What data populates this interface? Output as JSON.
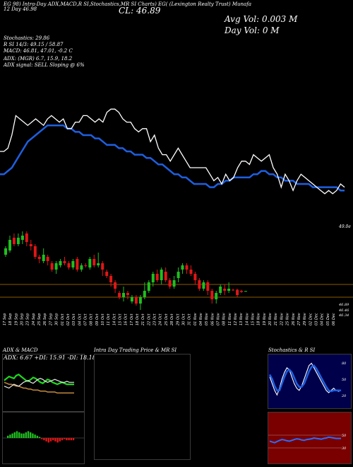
{
  "header": {
    "row1": "EG 98) Intra-Day ADX,MACD,R  SI,Stochastics,MR  SI Charts) EG(  (Lexington Realty Trust) Munafa",
    "row2": "12  Day  46.98",
    "close_label": "CL: 46.89",
    "avg_vol": "Avg Vol: 0.003 M",
    "day_vol": "Day Vol: 0   M"
  },
  "indicators": {
    "stochastics": "Stochastics: 29.86",
    "rsi": "R   SI 14/3: 49.15 / 58.87",
    "macd": "MACD: 46.81, 47.01, -0.2  C",
    "adx": "ADX:                              (MGR) 6.7,  15.9,  18.2",
    "adx_signal": "ADX  signal: SELL  Sloping @ 6%"
  },
  "price_axis": {
    "top_label": "49.0e",
    "low_labels": [
      "46.89",
      "46.46",
      "46.34"
    ]
  },
  "date_labels": [
    "17 Sep",
    "18 Sep",
    "19 Sep",
    "20 Sep",
    "23 Sep",
    "24 Sep",
    "25 Sep",
    "26 Sep",
    "27 Sep",
    "30 Sep",
    "01 Oct",
    "02 Oct",
    "03 Oct",
    "04 Oct",
    "07 Oct",
    "08 Oct",
    "09 Oct",
    "10 Oct",
    "11 Oct",
    "14 Oct",
    "15 Oct",
    "16 Oct",
    "17 Oct",
    "18 Oct",
    "21 Oct",
    "22 Oct",
    "23 Oct",
    "24 Oct",
    "25 Oct",
    "28 Oct",
    "29 Oct",
    "30 Oct",
    "31 Oct",
    "01 Nov",
    "04 Nov",
    "05 Nov",
    "06 Nov",
    "07 Nov",
    "08 Nov",
    "11 Nov",
    "12 Nov",
    "13 Nov",
    "14 Nov",
    "15 Nov",
    "18 Nov",
    "19 Nov",
    "20 Nov",
    "21 Nov",
    "22 Nov",
    "25 Nov",
    "26 Nov",
    "27 Nov",
    "29 Nov",
    "02 Dec",
    "03 Dec",
    "04 Dec",
    "05 Dec",
    "06 Dec"
  ],
  "panels": {
    "adx_macd": "ADX  & MACD",
    "adx_values": "ADX: 6.67  +DI: 15.91  -DI: 18.18",
    "intraday": "Intra  Day Trading Price  & MR                SI",
    "stoch_rsi": "Stochastics & R             SI",
    "stoch_ticks": [
      "80",
      "50",
      "20"
    ],
    "rsi_ticks": [
      "50",
      "30"
    ]
  },
  "colors": {
    "up": "#1fbf1f",
    "down": "#e01616",
    "ema": "#1e5fe0",
    "price_line": "#ffffff",
    "level_line": "#8b5a00",
    "panel_bg_dark": "#00004a",
    "panel_bg_red": "#7a0000",
    "panel_border": "#3a3a3a"
  },
  "chart_data": [
    {
      "type": "line",
      "name": "price",
      "y_relative": [
        15,
        15,
        14,
        10,
        4,
        5,
        6,
        7,
        6,
        5,
        6,
        7,
        5,
        4,
        5,
        6,
        5,
        8,
        8,
        6,
        6,
        4,
        4,
        5,
        6,
        5,
        6,
        3,
        2,
        2,
        3,
        5,
        6,
        6,
        8,
        9,
        8,
        8,
        12,
        10,
        14,
        16,
        16,
        18,
        16,
        14,
        16,
        18,
        20,
        20,
        20,
        20,
        20,
        22,
        24,
        23,
        25,
        22,
        24,
        23,
        20,
        18,
        18,
        19,
        16,
        17,
        18,
        17,
        16,
        20,
        22,
        26,
        22,
        24,
        27,
        24,
        22,
        23,
        24,
        25,
        26,
        27,
        28,
        27,
        28,
        27,
        25,
        26
      ],
      "ema_relative": [
        22,
        22,
        21,
        20,
        18,
        16,
        14,
        12,
        11,
        10,
        9,
        8,
        7,
        7,
        7,
        7,
        7,
        8,
        8,
        9,
        9,
        10,
        10,
        10,
        11,
        11,
        12,
        13,
        13,
        13,
        14,
        14,
        15,
        15,
        16,
        16,
        16,
        17,
        17,
        18,
        19,
        19,
        20,
        21,
        22,
        22,
        23,
        23,
        24,
        25,
        25,
        25,
        25,
        26,
        26,
        25,
        25,
        24,
        24,
        23,
        23,
        23,
        23,
        23,
        22,
        22,
        21,
        21,
        22,
        22,
        23,
        23,
        24,
        24,
        24,
        25,
        25,
        25,
        25,
        26,
        26,
        26,
        26,
        26,
        26,
        26,
        27,
        27
      ]
    },
    {
      "type": "candlestick",
      "candles": [
        {
          "o": 48.6,
          "c": 48.9,
          "h": 49.0,
          "l": 48.5,
          "up": true
        },
        {
          "o": 48.8,
          "c": 49.3,
          "h": 49.5,
          "l": 48.7,
          "up": true
        },
        {
          "o": 49.4,
          "c": 49.1,
          "h": 49.6,
          "l": 49.0,
          "up": false
        },
        {
          "o": 49.1,
          "c": 49.4,
          "h": 49.6,
          "l": 49.0,
          "up": true
        },
        {
          "o": 49.3,
          "c": 49.5,
          "h": 49.7,
          "l": 49.1,
          "up": true
        },
        {
          "o": 49.6,
          "c": 49.2,
          "h": 49.7,
          "l": 49.0,
          "up": false
        },
        {
          "o": 49.1,
          "c": 49.0,
          "h": 49.3,
          "l": 48.8,
          "up": false
        },
        {
          "o": 49.0,
          "c": 48.5,
          "h": 49.1,
          "l": 48.4,
          "up": false
        },
        {
          "o": 48.5,
          "c": 48.4,
          "h": 48.6,
          "l": 48.2,
          "up": false
        },
        {
          "o": 48.3,
          "c": 48.6,
          "h": 48.9,
          "l": 48.2,
          "up": true
        },
        {
          "o": 48.5,
          "c": 48.3,
          "h": 48.6,
          "l": 48.1,
          "up": false
        },
        {
          "o": 48.2,
          "c": 47.9,
          "h": 48.3,
          "l": 47.8,
          "up": false
        },
        {
          "o": 47.9,
          "c": 48.2,
          "h": 48.3,
          "l": 47.7,
          "up": true
        },
        {
          "o": 48.1,
          "c": 48.3,
          "h": 48.4,
          "l": 48.0,
          "up": true
        },
        {
          "o": 48.3,
          "c": 48.2,
          "h": 48.5,
          "l": 48.1,
          "up": false
        },
        {
          "o": 48.2,
          "c": 48.0,
          "h": 48.3,
          "l": 47.9,
          "up": false
        },
        {
          "o": 48.0,
          "c": 48.3,
          "h": 48.4,
          "l": 47.9,
          "up": true
        },
        {
          "o": 48.4,
          "c": 47.9,
          "h": 48.5,
          "l": 47.8,
          "up": false
        },
        {
          "o": 47.9,
          "c": 48.1,
          "h": 48.2,
          "l": 47.8,
          "up": true
        },
        {
          "o": 48.1,
          "c": 48.1,
          "h": 48.2,
          "l": 48.0,
          "up": false
        },
        {
          "o": 48.0,
          "c": 48.4,
          "h": 48.5,
          "l": 47.9,
          "up": true
        },
        {
          "o": 48.4,
          "c": 48.1,
          "h": 48.6,
          "l": 48.0,
          "up": false
        },
        {
          "o": 48.1,
          "c": 48.2,
          "h": 48.7,
          "l": 48.0,
          "up": true
        },
        {
          "o": 48.2,
          "c": 47.9,
          "h": 48.3,
          "l": 47.6,
          "up": false
        },
        {
          "o": 47.8,
          "c": 47.6,
          "h": 47.9,
          "l": 47.5,
          "up": false
        },
        {
          "o": 47.6,
          "c": 47.3,
          "h": 47.7,
          "l": 47.1,
          "up": false
        },
        {
          "o": 47.3,
          "c": 47.0,
          "h": 47.4,
          "l": 46.8,
          "up": false
        },
        {
          "o": 46.8,
          "c": 46.6,
          "h": 46.9,
          "l": 46.5,
          "up": false
        },
        {
          "o": 46.6,
          "c": 46.8,
          "h": 47.1,
          "l": 46.4,
          "up": true
        },
        {
          "o": 46.8,
          "c": 46.7,
          "h": 46.9,
          "l": 46.5,
          "up": false
        },
        {
          "o": 46.4,
          "c": 46.6,
          "h": 46.7,
          "l": 46.3,
          "up": true
        },
        {
          "o": 46.6,
          "c": 46.3,
          "h": 46.7,
          "l": 46.2,
          "up": false
        },
        {
          "o": 46.3,
          "c": 46.6,
          "h": 46.7,
          "l": 46.0,
          "up": true
        },
        {
          "o": 46.6,
          "c": 46.9,
          "h": 47.3,
          "l": 46.5,
          "up": true
        },
        {
          "o": 46.9,
          "c": 47.3,
          "h": 47.4,
          "l": 46.8,
          "up": true
        },
        {
          "o": 47.3,
          "c": 47.7,
          "h": 47.8,
          "l": 47.1,
          "up": true
        },
        {
          "o": 47.7,
          "c": 47.4,
          "h": 47.9,
          "l": 47.3,
          "up": false
        },
        {
          "o": 47.4,
          "c": 47.9,
          "h": 48.0,
          "l": 47.2,
          "up": true
        },
        {
          "o": 47.8,
          "c": 47.4,
          "h": 48.0,
          "l": 47.3,
          "up": false
        },
        {
          "o": 47.4,
          "c": 47.1,
          "h": 47.5,
          "l": 47.0,
          "up": false
        },
        {
          "o": 47.1,
          "c": 47.4,
          "h": 47.6,
          "l": 47.0,
          "up": true
        },
        {
          "o": 47.5,
          "c": 47.8,
          "h": 48.0,
          "l": 47.3,
          "up": true
        },
        {
          "o": 47.9,
          "c": 48.1,
          "h": 48.2,
          "l": 47.7,
          "up": true
        },
        {
          "o": 48.1,
          "c": 47.9,
          "h": 48.2,
          "l": 47.7,
          "up": false
        },
        {
          "o": 47.9,
          "c": 47.7,
          "h": 48.1,
          "l": 47.6,
          "up": false
        },
        {
          "o": 47.7,
          "c": 47.4,
          "h": 47.8,
          "l": 47.2,
          "up": false
        },
        {
          "o": 47.4,
          "c": 47.0,
          "h": 47.5,
          "l": 46.9,
          "up": false
        },
        {
          "o": 47.0,
          "c": 47.3,
          "h": 47.4,
          "l": 46.9,
          "up": true
        },
        {
          "o": 47.3,
          "c": 46.9,
          "h": 47.4,
          "l": 46.7,
          "up": false
        },
        {
          "o": 46.9,
          "c": 46.5,
          "h": 47.0,
          "l": 46.3,
          "up": false
        },
        {
          "o": 46.5,
          "c": 46.8,
          "h": 46.9,
          "l": 46.3,
          "up": true
        },
        {
          "o": 46.8,
          "c": 47.1,
          "h": 47.2,
          "l": 46.7,
          "up": true
        },
        {
          "o": 47.0,
          "c": 46.9,
          "h": 47.2,
          "l": 46.7,
          "up": false
        },
        {
          "o": 46.9,
          "c": 47.0,
          "h": 47.3,
          "l": 46.8,
          "up": true
        },
        {
          "o": 46.95,
          "c": 46.95,
          "h": 47.0,
          "l": 46.9,
          "up": false
        },
        {
          "o": 46.95,
          "c": 46.7,
          "h": 47.0,
          "l": 46.6,
          "up": false
        },
        {
          "o": 46.9,
          "c": 46.85,
          "h": 46.95,
          "l": 46.8,
          "up": false
        },
        {
          "o": 46.89,
          "c": 46.89,
          "h": 46.9,
          "l": 46.88,
          "up": true
        }
      ],
      "ylim": [
        46.0,
        49.8
      ],
      "level_lines": [
        47.2,
        46.6
      ]
    },
    {
      "type": "line",
      "name": "adx",
      "series": [
        {
          "name": "ADX",
          "values": [
            18,
            17,
            16,
            16,
            15,
            14,
            14,
            13,
            12,
            12,
            11,
            11,
            10,
            10,
            10,
            9,
            9,
            9,
            8,
            8,
            8,
            8,
            7,
            7,
            7,
            7,
            7,
            7,
            7,
            7
          ]
        },
        {
          "name": "+DI",
          "values": [
            20,
            22,
            24,
            23,
            22,
            25,
            26,
            24,
            22,
            20,
            19,
            21,
            23,
            22,
            20,
            18,
            17,
            19,
            21,
            20,
            18,
            17,
            16,
            17,
            18,
            17,
            16,
            16,
            16,
            16
          ]
        },
        {
          "name": "-DI",
          "values": [
            14,
            13,
            12,
            14,
            16,
            15,
            14,
            16,
            18,
            19,
            20,
            18,
            17,
            19,
            21,
            22,
            21,
            19,
            18,
            19,
            20,
            21,
            20,
            19,
            18,
            18,
            19,
            18,
            18,
            18
          ]
        }
      ]
    },
    {
      "type": "bar",
      "name": "macd-histogram",
      "values": [
        0.2,
        0.3,
        0.4,
        0.5,
        0.6,
        0.5,
        0.4,
        0.4,
        0.5,
        0.6,
        0.5,
        0.4,
        0.3,
        0.2,
        0.1,
        -0.1,
        -0.2,
        -0.3,
        -0.4,
        -0.3,
        -0.2,
        -0.3,
        -0.4,
        -0.3,
        -0.2,
        -0.1,
        -0.2,
        -0.2,
        -0.2,
        -0.2
      ]
    },
    {
      "type": "line",
      "name": "stochastics",
      "ylim": [
        0,
        100
      ],
      "series": [
        {
          "name": "%K",
          "values": [
            60,
            45,
            30,
            20,
            35,
            55,
            70,
            80,
            75,
            60,
            45,
            35,
            30,
            40,
            55,
            70,
            85,
            90,
            80,
            70,
            60,
            50,
            40,
            30,
            25,
            30,
            35,
            30,
            28,
            30
          ]
        },
        {
          "name": "%D",
          "values": [
            65,
            55,
            40,
            30,
            30,
            45,
            60,
            72,
            76,
            70,
            58,
            45,
            38,
            38,
            45,
            58,
            72,
            82,
            85,
            78,
            68,
            58,
            48,
            38,
            30,
            28,
            30,
            30,
            30,
            30
          ]
        }
      ]
    },
    {
      "type": "line",
      "name": "rsi",
      "ylim": [
        0,
        100
      ],
      "series": [
        {
          "name": "RSI",
          "values": [
            42,
            40,
            38,
            41,
            44,
            46,
            45,
            43,
            42,
            44,
            46,
            48,
            47,
            45,
            44,
            46,
            47,
            48,
            50,
            49,
            48,
            47,
            49,
            50,
            52,
            51,
            50,
            49,
            49,
            49
          ]
        }
      ]
    }
  ]
}
